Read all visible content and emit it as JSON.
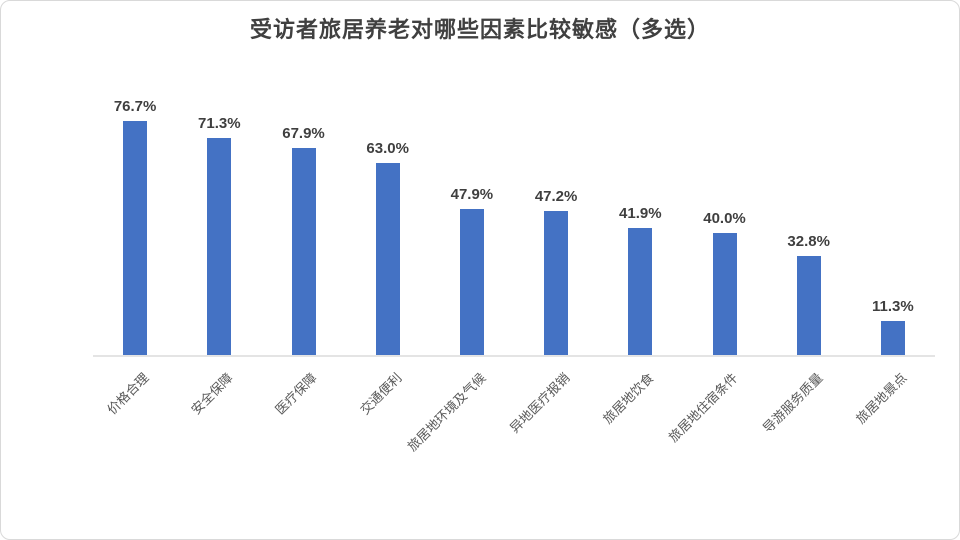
{
  "chart_data": {
    "type": "bar",
    "title": "受访者旅居养老对哪些因素比较敏感（多选）",
    "categories": [
      "价格合理",
      "安全保障",
      "医疗保障",
      "交通便利",
      "旅居地环境及气候",
      "异地医疗报销",
      "旅居地饮食",
      "旅居地住宿条件",
      "导游服务质量",
      "旅居地景点"
    ],
    "values": [
      76.7,
      71.3,
      67.9,
      63.0,
      47.9,
      47.2,
      41.9,
      40.0,
      32.8,
      11.3
    ],
    "data_labels": [
      "76.7%",
      "71.3%",
      "67.9%",
      "63.0%",
      "47.9%",
      "47.2%",
      "41.9%",
      "40.0%",
      "32.8%",
      "11.3%"
    ],
    "xlabel": "",
    "ylabel": "",
    "ylim": [
      0,
      80
    ],
    "grid": false,
    "legend": "none",
    "y_axis_visible": false,
    "bar_color": "#4472C4",
    "axis_line_color": "#E4E4E4",
    "title_color": "#404040",
    "value_label_color": "#3F3F3F",
    "category_label_color": "#595959"
  }
}
